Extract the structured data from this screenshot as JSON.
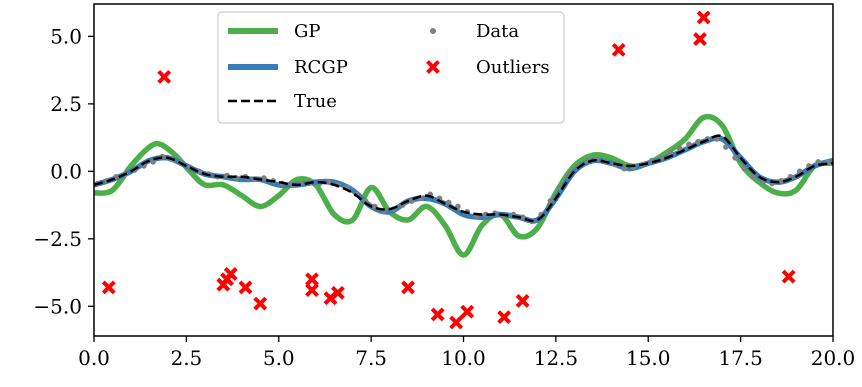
{
  "chart_data": {
    "type": "line",
    "title": "",
    "xlabel": "",
    "ylabel": "",
    "xlim": [
      0,
      20
    ],
    "ylim": [
      -6.1,
      6.2
    ],
    "xticks": [
      0.0,
      2.5,
      5.0,
      7.5,
      10.0,
      12.5,
      15.0,
      17.5,
      20.0
    ],
    "xtick_labels": [
      "0.0",
      "2.5",
      "5.0",
      "7.5",
      "10.0",
      "12.5",
      "15.0",
      "17.5",
      "20.0"
    ],
    "yticks": [
      5.0,
      2.5,
      0.0,
      -2.5,
      -5.0
    ],
    "ytick_labels": [
      "5.0",
      "2.5",
      "0.0",
      "−2.5",
      "−5.0"
    ],
    "grid": false,
    "legend_position": "top-center",
    "legend": [
      {
        "label": "GP",
        "kind": "line",
        "color": "#4daf4a"
      },
      {
        "label": "RCGP",
        "kind": "line",
        "color": "#377eb8"
      },
      {
        "label": "True",
        "kind": "dashed",
        "color": "#000000"
      },
      {
        "label": "Data",
        "kind": "point",
        "color": "#808080"
      },
      {
        "label": "Outliers",
        "kind": "x",
        "color": "#ff0000"
      }
    ],
    "series": [
      {
        "name": "GP",
        "kind": "line",
        "color": "#4daf4a",
        "x": [
          0,
          0.5,
          1.0,
          1.5,
          1.8,
          2.2,
          2.6,
          3.0,
          3.5,
          4.0,
          4.5,
          5.0,
          5.5,
          6.0,
          6.5,
          7.0,
          7.5,
          8.0,
          8.5,
          9.0,
          9.5,
          10.0,
          10.5,
          11.0,
          11.5,
          12.0,
          12.5,
          13.0,
          13.5,
          14.0,
          14.5,
          15.0,
          15.5,
          16.0,
          16.5,
          17.0,
          17.5,
          18.0,
          18.5,
          19.0,
          19.5,
          20.0
        ],
        "y": [
          -0.8,
          -0.7,
          0.2,
          0.9,
          1.0,
          0.6,
          0.0,
          -0.5,
          -0.5,
          -0.9,
          -1.3,
          -0.9,
          -0.3,
          -0.5,
          -1.6,
          -1.8,
          -0.6,
          -1.5,
          -1.8,
          -1.3,
          -2.0,
          -3.1,
          -2.0,
          -1.6,
          -2.4,
          -2.1,
          -0.8,
          0.2,
          0.6,
          0.5,
          0.2,
          0.3,
          0.7,
          1.2,
          2.0,
          1.7,
          0.3,
          -0.4,
          -0.8,
          -0.7,
          0.2,
          0.3
        ]
      },
      {
        "name": "RCGP",
        "kind": "line",
        "color": "#377eb8",
        "x": [
          0,
          0.5,
          1.0,
          1.5,
          2.0,
          2.5,
          3.0,
          3.5,
          4.0,
          4.5,
          5.0,
          5.5,
          6.0,
          6.5,
          7.0,
          7.5,
          8.0,
          8.5,
          9.0,
          9.5,
          10.0,
          10.5,
          11.0,
          11.5,
          12.0,
          12.5,
          13.0,
          13.5,
          14.0,
          14.5,
          15.0,
          15.5,
          16.0,
          16.5,
          17.0,
          17.5,
          18.0,
          18.5,
          19.0,
          19.5,
          20.0
        ],
        "y": [
          -0.5,
          -0.3,
          0.0,
          0.4,
          0.5,
          0.2,
          -0.1,
          -0.2,
          -0.3,
          -0.3,
          -0.5,
          -0.5,
          -0.4,
          -0.4,
          -0.7,
          -1.3,
          -1.5,
          -1.1,
          -1.0,
          -1.2,
          -1.6,
          -1.7,
          -1.6,
          -1.7,
          -1.8,
          -1.0,
          0.0,
          0.4,
          0.3,
          0.1,
          0.3,
          0.5,
          0.8,
          1.1,
          1.2,
          0.5,
          -0.2,
          -0.4,
          -0.2,
          0.2,
          0.4
        ]
      },
      {
        "name": "True",
        "kind": "dashed",
        "color": "#000000",
        "x": [
          0,
          0.5,
          1.0,
          1.5,
          2.0,
          2.5,
          3.0,
          3.5,
          4.0,
          4.5,
          5.0,
          5.5,
          6.0,
          6.5,
          7.0,
          7.5,
          8.0,
          8.5,
          9.0,
          9.5,
          10.0,
          10.5,
          11.0,
          11.5,
          12.0,
          12.5,
          13.0,
          13.5,
          14.0,
          14.5,
          15.0,
          15.5,
          16.0,
          16.5,
          17.0,
          17.5,
          18.0,
          18.5,
          19.0,
          19.5,
          20.0
        ],
        "y": [
          -0.5,
          -0.3,
          0.0,
          0.4,
          0.5,
          0.2,
          -0.1,
          -0.2,
          -0.2,
          -0.3,
          -0.4,
          -0.5,
          -0.4,
          -0.5,
          -0.8,
          -1.3,
          -1.4,
          -1.1,
          -0.9,
          -1.2,
          -1.5,
          -1.6,
          -1.6,
          -1.7,
          -1.8,
          -1.0,
          0.0,
          0.4,
          0.3,
          0.2,
          0.3,
          0.5,
          0.8,
          1.1,
          1.3,
          0.5,
          -0.2,
          -0.4,
          -0.2,
          0.2,
          0.3
        ]
      },
      {
        "name": "Data",
        "kind": "points",
        "color": "#808080",
        "x": [
          0.1,
          0.35,
          0.6,
          0.85,
          1.1,
          1.35,
          1.6,
          1.85,
          2.1,
          2.35,
          2.6,
          2.85,
          3.1,
          3.35,
          3.6,
          3.85,
          4.1,
          4.35,
          4.6,
          4.85,
          5.1,
          5.35,
          5.6,
          5.85,
          6.1,
          6.35,
          6.6,
          6.85,
          7.1,
          7.35,
          7.6,
          7.85,
          8.1,
          8.35,
          8.6,
          8.85,
          9.1,
          9.35,
          9.6,
          9.85,
          10.1,
          10.35,
          10.6,
          10.85,
          11.1,
          11.35,
          11.6,
          11.85,
          12.1,
          12.35,
          12.6,
          12.85,
          13.1,
          13.35,
          13.6,
          13.85,
          14.1,
          14.35,
          14.6,
          14.85,
          15.1,
          15.35,
          15.6,
          15.85,
          16.1,
          16.35,
          16.6,
          16.85,
          17.1,
          17.35,
          17.6,
          17.85,
          18.1,
          18.35,
          18.6,
          18.85,
          19.1,
          19.35,
          19.6,
          19.85
        ],
        "y": [
          -0.45,
          -0.35,
          -0.2,
          -0.1,
          0.05,
          0.2,
          0.35,
          0.55,
          0.45,
          0.3,
          0.15,
          0.0,
          -0.1,
          -0.2,
          -0.15,
          -0.25,
          -0.2,
          -0.3,
          -0.25,
          -0.35,
          -0.45,
          -0.5,
          -0.45,
          -0.4,
          -0.45,
          -0.4,
          -0.5,
          -0.6,
          -0.85,
          -1.1,
          -1.3,
          -1.45,
          -1.4,
          -1.25,
          -1.1,
          -1.0,
          -0.85,
          -1.0,
          -1.15,
          -1.3,
          -1.5,
          -1.65,
          -1.6,
          -1.55,
          -1.65,
          -1.6,
          -1.7,
          -1.85,
          -1.6,
          -1.1,
          -0.6,
          -0.1,
          0.2,
          0.4,
          0.45,
          0.35,
          0.25,
          0.1,
          0.15,
          0.25,
          0.4,
          0.5,
          0.7,
          0.85,
          1.0,
          1.1,
          1.2,
          1.2,
          0.9,
          0.5,
          0.1,
          -0.2,
          -0.4,
          -0.45,
          -0.35,
          -0.2,
          0.0,
          0.2,
          0.35,
          0.35
        ]
      },
      {
        "name": "Outliers",
        "kind": "x",
        "color": "#ff0000",
        "x": [
          0.4,
          1.9,
          3.5,
          3.6,
          3.7,
          4.1,
          4.5,
          5.9,
          5.9,
          6.4,
          6.6,
          8.5,
          9.3,
          9.8,
          10.1,
          11.1,
          11.6,
          14.2,
          16.4,
          16.5,
          18.8
        ],
        "y": [
          -4.3,
          3.5,
          -4.2,
          -4.0,
          -3.8,
          -4.3,
          -4.9,
          -4.0,
          -4.4,
          -4.7,
          -4.5,
          -4.3,
          -5.3,
          -5.6,
          -5.2,
          -5.4,
          -4.8,
          4.5,
          4.9,
          5.7,
          -3.9
        ]
      }
    ]
  }
}
